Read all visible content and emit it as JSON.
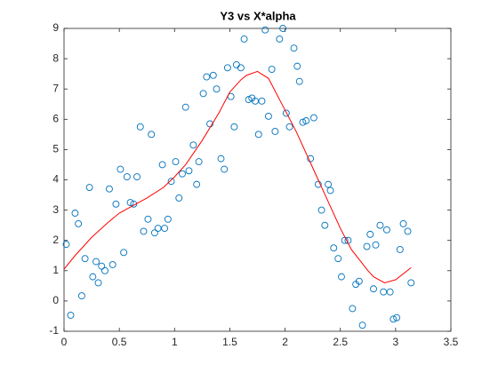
{
  "chart_data": {
    "type": "scatter",
    "title": "Y3 vs X*alpha",
    "xlim": [
      0,
      3.5
    ],
    "xticks": [
      0,
      0.5,
      1,
      1.5,
      2,
      2.5,
      3,
      3.5
    ],
    "ylim": [
      -1,
      9
    ],
    "yticks": [
      -1,
      0,
      1,
      2,
      3,
      4,
      5,
      6,
      7,
      8,
      9
    ],
    "series": [
      {
        "type": "scatter",
        "color": "#0072bd",
        "x": [
          0.02,
          0.06,
          0.1,
          0.13,
          0.16,
          0.19,
          0.23,
          0.26,
          0.29,
          0.31,
          0.34,
          0.37,
          0.41,
          0.44,
          0.47,
          0.51,
          0.54,
          0.57,
          0.6,
          0.63,
          0.66,
          0.69,
          0.72,
          0.76,
          0.79,
          0.82,
          0.85,
          0.89,
          0.91,
          0.94,
          0.97,
          1.01,
          1.04,
          1.07,
          1.1,
          1.13,
          1.17,
          1.2,
          1.22,
          1.26,
          1.29,
          1.32,
          1.35,
          1.38,
          1.42,
          1.45,
          1.48,
          1.51,
          1.54,
          1.56,
          1.6,
          1.63,
          1.67,
          1.7,
          1.73,
          1.76,
          1.79,
          1.82,
          1.85,
          1.88,
          1.91,
          1.95,
          1.98,
          2.01,
          2.04,
          2.08,
          2.11,
          2.13,
          2.16,
          2.19,
          2.23,
          2.26,
          2.3,
          2.33,
          2.36,
          2.39,
          2.41,
          2.44,
          2.48,
          2.51,
          2.54,
          2.57,
          2.61,
          2.64,
          2.67,
          2.7,
          2.74,
          2.77,
          2.8,
          2.82,
          2.86,
          2.89,
          2.92,
          2.95,
          2.98,
          3.01,
          3.04,
          3.07,
          3.11,
          3.14
        ],
        "values": [
          1.87,
          -0.47,
          2.9,
          2.55,
          0.17,
          1.4,
          3.75,
          0.8,
          1.3,
          0.6,
          1.15,
          1.0,
          3.7,
          1.2,
          3.2,
          4.35,
          1.6,
          4.1,
          3.25,
          3.2,
          4.1,
          5.75,
          2.3,
          2.7,
          5.5,
          2.25,
          2.4,
          4.5,
          2.4,
          2.7,
          3.95,
          4.6,
          3.4,
          4.2,
          6.4,
          4.3,
          5.15,
          3.85,
          4.6,
          6.85,
          7.4,
          5.85,
          7.45,
          7.0,
          4.7,
          4.35,
          7.7,
          6.75,
          5.75,
          7.8,
          7.7,
          8.65,
          6.65,
          6.7,
          6.6,
          5.5,
          6.6,
          8.95,
          6.1,
          7.65,
          5.6,
          8.65,
          9.0,
          6.2,
          5.75,
          8.35,
          7.75,
          7.25,
          5.9,
          5.95,
          4.7,
          6.05,
          3.85,
          3.0,
          2.5,
          3.85,
          3.65,
          1.75,
          1.4,
          0.8,
          2.0,
          2.0,
          -0.25,
          0.55,
          0.65,
          -0.8,
          1.8,
          2.2,
          0.4,
          1.85,
          2.5,
          0.3,
          2.35,
          0.3,
          -0.6,
          -0.55,
          1.7,
          2.55,
          2.3,
          0.6
        ]
      },
      {
        "type": "line",
        "color": "#ff0000",
        "x": [
          0,
          0.1,
          0.25,
          0.4,
          0.5,
          0.6,
          0.75,
          0.9,
          1.0,
          1.1,
          1.25,
          1.4,
          1.5,
          1.6,
          1.65,
          1.75,
          1.85,
          2.0,
          2.1,
          2.25,
          2.4,
          2.5,
          2.6,
          2.75,
          2.8,
          2.9,
          3.0,
          3.14
        ],
        "values": [
          1.05,
          1.5,
          2.1,
          2.6,
          2.9,
          3.1,
          3.4,
          3.75,
          4.1,
          4.5,
          5.3,
          6.2,
          6.9,
          7.3,
          7.45,
          7.58,
          7.35,
          6.3,
          5.6,
          4.4,
          3.2,
          2.4,
          1.7,
          1.0,
          0.8,
          0.6,
          0.7,
          1.1
        ]
      }
    ]
  }
}
